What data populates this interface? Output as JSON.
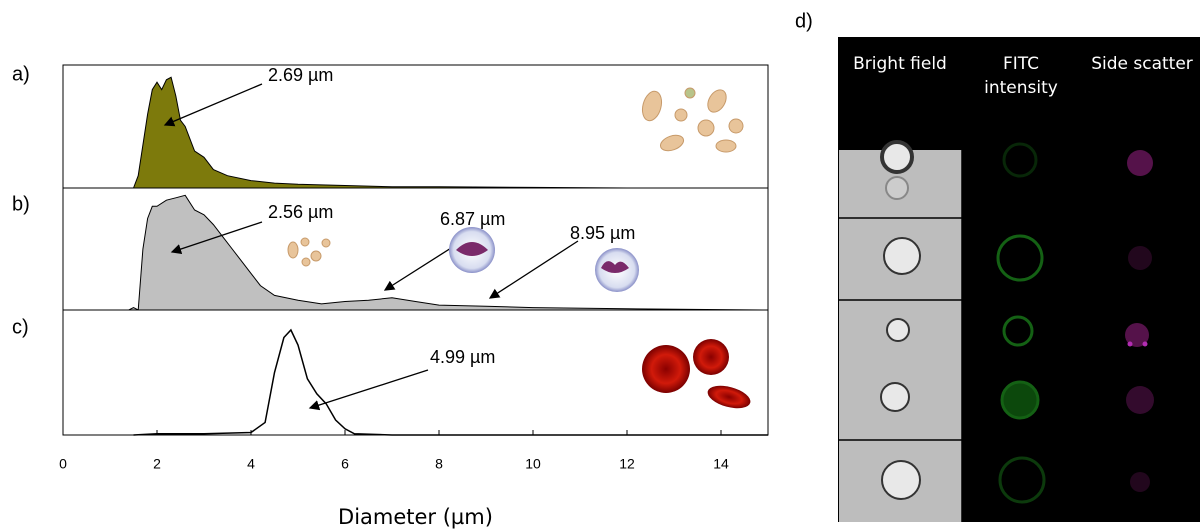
{
  "chart_data": [
    {
      "type": "area",
      "label": "a)",
      "color": "#7d7a0c",
      "x": [
        1.5,
        1.6,
        1.8,
        1.9,
        2.0,
        2.1,
        2.2,
        2.3,
        2.4,
        2.5,
        2.6,
        2.7,
        2.8,
        3.0,
        3.2,
        3.5,
        4,
        4.5,
        5,
        6,
        7,
        8,
        10,
        12,
        14,
        15
      ],
      "values": [
        0,
        0.1,
        0.6,
        0.8,
        0.86,
        0.8,
        0.88,
        0.9,
        0.75,
        0.55,
        0.5,
        0.4,
        0.3,
        0.25,
        0.15,
        0.1,
        0.06,
        0.04,
        0.03,
        0.02,
        0.01,
        0.01,
        0.005,
        0,
        0,
        0
      ],
      "xlim": [
        0,
        15
      ],
      "ylim": [
        0,
        1
      ],
      "annotations": [
        "2.69 µm"
      ]
    },
    {
      "type": "area",
      "label": "b)",
      "color": "#c0c0c0",
      "x": [
        1.4,
        1.5,
        1.6,
        1.7,
        1.8,
        1.9,
        2.0,
        2.2,
        2.4,
        2.6,
        2.8,
        3.0,
        3.2,
        3.4,
        3.6,
        3.8,
        4.0,
        4.2,
        4.5,
        5,
        5.5,
        6,
        6.5,
        7,
        7.5,
        8,
        9,
        10,
        12,
        15
      ],
      "values": [
        0,
        0.02,
        0,
        0.5,
        0.75,
        0.85,
        0.85,
        0.9,
        0.92,
        0.94,
        0.82,
        0.78,
        0.7,
        0.6,
        0.5,
        0.4,
        0.3,
        0.2,
        0.12,
        0.08,
        0.05,
        0.07,
        0.08,
        0.1,
        0.07,
        0.04,
        0.03,
        0.02,
        0.01,
        0
      ],
      "xlim": [
        0,
        15
      ],
      "ylim": [
        0,
        1
      ],
      "annotations": [
        "2.56 µm",
        "6.87 µm",
        "8.95 µm"
      ]
    },
    {
      "type": "line",
      "label": "c)",
      "color": "#000000",
      "x": [
        1.5,
        2,
        3,
        4,
        4.3,
        4.5,
        4.7,
        4.85,
        5.0,
        5.2,
        5.4,
        5.6,
        5.8,
        6.0,
        6.2,
        7,
        15
      ],
      "values": [
        0,
        0.01,
        0.01,
        0.02,
        0.1,
        0.5,
        0.78,
        0.84,
        0.72,
        0.45,
        0.33,
        0.25,
        0.12,
        0.05,
        0.01,
        0,
        0
      ],
      "xlim": [
        0,
        15
      ],
      "ylim": [
        0,
        1
      ],
      "annotations": [
        "4.99 µm"
      ],
      "xticks": [
        0,
        2,
        4,
        6,
        8,
        10,
        12,
        14
      ],
      "xlabel": "Diameter (µm)"
    }
  ],
  "panel_d": {
    "label": "d)",
    "columns": [
      "Bright field",
      "FITC intensity",
      "Side scatter"
    ]
  }
}
